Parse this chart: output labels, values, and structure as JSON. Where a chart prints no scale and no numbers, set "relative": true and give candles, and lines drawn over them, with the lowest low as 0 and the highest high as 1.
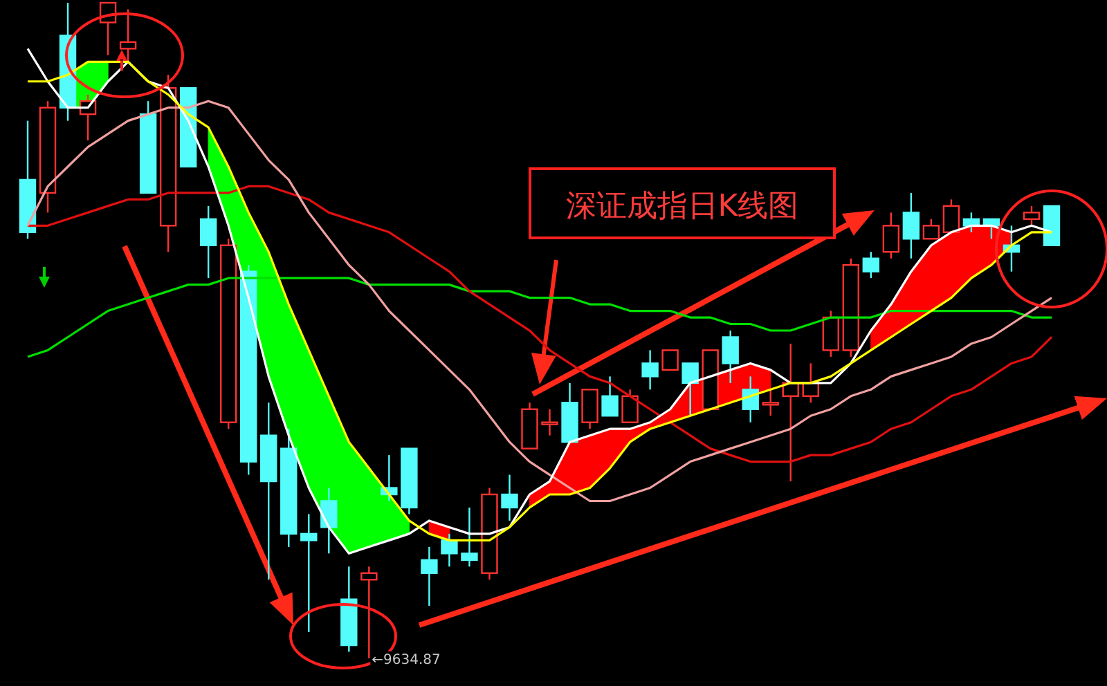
{
  "chart_data": {
    "type": "candlestick",
    "relative": true,
    "categories": [
      null,
      null,
      null,
      null,
      null,
      null,
      null,
      null,
      null,
      null,
      null,
      null,
      null,
      null,
      null,
      null,
      null,
      null,
      null,
      null,
      null,
      null,
      null,
      null,
      null,
      null,
      null,
      null,
      null,
      null,
      null,
      null,
      null,
      null,
      null,
      null,
      null,
      null,
      null,
      null,
      null,
      null,
      null,
      null,
      null,
      null,
      null,
      null,
      null,
      null,
      null,
      null
    ],
    "colors": [
      "#54fcfc",
      "#ff3232",
      "#54fcfc",
      "#ff3232",
      "#ff3232",
      "#ff3232",
      "#54fcfc",
      "#ff3232",
      "#54fcfc",
      "#54fcfc",
      "#ff3232",
      "#54fcfc",
      "#54fcfc",
      "#54fcfc",
      "#54fcfc",
      "#54fcfc",
      "#54fcfc",
      "#ff3232",
      "#54fcfc",
      "#54fcfc",
      "#54fcfc",
      "#54fcfc",
      "#54fcfc",
      "#ff3232",
      "#54fcfc",
      "#ff3232",
      "#ff3232",
      "#54fcfc",
      "#ff3232",
      "#54fcfc",
      "#ff3232",
      "#54fcfc",
      "#ff3232",
      "#54fcfc",
      "#ff3232",
      "#54fcfc",
      "#54fcfc",
      "#ff3232",
      "#ff3232",
      "#ff3232",
      "#ff3232",
      "#ff3232",
      "#54fcfc",
      "#ff3232",
      "#54fcfc",
      "#ff3232",
      "#ff3232",
      "#54fcfc",
      "#54fcfc",
      "#54fcfc",
      "#ff3232",
      "#54fcfc"
    ],
    "ohlc": [
      [
        0.73,
        0.82,
        0.64,
        0.65
      ],
      [
        0.71,
        0.85,
        0.68,
        0.84
      ],
      [
        0.95,
        1.0,
        0.82,
        0.84
      ],
      [
        0.83,
        0.86,
        0.79,
        0.85
      ],
      [
        0.97,
        1.0,
        0.92,
        1.0
      ],
      [
        0.93,
        0.99,
        0.91,
        0.94
      ],
      [
        0.83,
        0.85,
        0.71,
        0.71
      ],
      [
        0.66,
        0.89,
        0.62,
        0.87
      ],
      [
        0.87,
        0.87,
        0.75,
        0.75
      ],
      [
        0.67,
        0.69,
        0.58,
        0.63
      ],
      [
        0.36,
        0.64,
        0.35,
        0.63
      ],
      [
        0.59,
        0.6,
        0.28,
        0.3
      ],
      [
        0.34,
        0.39,
        0.12,
        0.27
      ],
      [
        0.32,
        0.35,
        0.17,
        0.19
      ],
      [
        0.19,
        0.22,
        0.04,
        0.18
      ],
      [
        0.24,
        0.26,
        0.16,
        0.2
      ],
      [
        0.09,
        0.14,
        0.01,
        0.02
      ],
      [
        0.12,
        0.14,
        0.0,
        0.13
      ],
      [
        0.26,
        0.31,
        0.24,
        0.25
      ],
      [
        0.32,
        0.32,
        0.22,
        0.23
      ],
      [
        0.15,
        0.17,
        0.08,
        0.13
      ],
      [
        0.18,
        0.19,
        0.14,
        0.16
      ],
      [
        0.16,
        0.23,
        0.14,
        0.15
      ],
      [
        0.13,
        0.26,
        0.12,
        0.25
      ],
      [
        0.25,
        0.28,
        0.21,
        0.23
      ],
      [
        0.32,
        0.39,
        0.32,
        0.38
      ],
      [
        0.36,
        0.38,
        0.34,
        0.36
      ],
      [
        0.39,
        0.42,
        0.33,
        0.33
      ],
      [
        0.36,
        0.41,
        0.35,
        0.41
      ],
      [
        0.4,
        0.43,
        0.37,
        0.37
      ],
      [
        0.36,
        0.41,
        0.36,
        0.4
      ],
      [
        0.45,
        0.47,
        0.41,
        0.43
      ],
      [
        0.44,
        0.47,
        0.44,
        0.47
      ],
      [
        0.45,
        0.45,
        0.37,
        0.42
      ],
      [
        0.38,
        0.47,
        0.38,
        0.47
      ],
      [
        0.49,
        0.5,
        0.42,
        0.45
      ],
      [
        0.41,
        0.43,
        0.36,
        0.38
      ],
      [
        0.39,
        0.41,
        0.37,
        0.39
      ],
      [
        0.4,
        0.48,
        0.27,
        0.42
      ],
      [
        0.4,
        0.45,
        0.39,
        0.42
      ],
      [
        0.47,
        0.53,
        0.46,
        0.52
      ],
      [
        0.47,
        0.61,
        0.46,
        0.6
      ],
      [
        0.61,
        0.62,
        0.58,
        0.59
      ],
      [
        0.62,
        0.68,
        0.61,
        0.66
      ],
      [
        0.68,
        0.71,
        0.61,
        0.64
      ],
      [
        0.64,
        0.67,
        0.64,
        0.66
      ],
      [
        0.65,
        0.7,
        0.65,
        0.69
      ],
      [
        0.67,
        0.68,
        0.65,
        0.66
      ],
      [
        0.67,
        0.67,
        0.64,
        0.66
      ],
      [
        0.63,
        0.66,
        0.59,
        0.62
      ],
      [
        0.67,
        0.69,
        0.66,
        0.68
      ],
      [
        0.69,
        0.69,
        0.63,
        0.63
      ]
    ],
    "series": [
      {
        "type": "line",
        "color": "#00e000",
        "values": [
          0.46,
          0.47,
          0.49,
          0.51,
          0.53,
          0.54,
          0.55,
          0.56,
          0.57,
          0.57,
          0.58,
          0.58,
          0.58,
          0.58,
          0.58,
          0.58,
          0.58,
          0.57,
          0.57,
          0.57,
          0.57,
          0.57,
          0.56,
          0.56,
          0.56,
          0.55,
          0.55,
          0.55,
          0.54,
          0.54,
          0.53,
          0.53,
          0.53,
          0.52,
          0.52,
          0.51,
          0.51,
          0.5,
          0.5,
          0.51,
          0.52,
          0.52,
          0.52,
          0.53,
          0.53,
          0.53,
          0.53,
          0.53,
          0.53,
          0.53,
          0.52,
          0.52
        ]
      },
      {
        "type": "line",
        "color": "#e01010",
        "values": [
          0.66,
          0.66,
          0.67,
          0.68,
          0.69,
          0.7,
          0.7,
          0.71,
          0.71,
          0.71,
          0.71,
          0.72,
          0.72,
          0.71,
          0.7,
          0.68,
          0.67,
          0.66,
          0.65,
          0.63,
          0.61,
          0.59,
          0.56,
          0.54,
          0.52,
          0.5,
          0.47,
          0.45,
          0.43,
          0.42,
          0.4,
          0.38,
          0.36,
          0.34,
          0.32,
          0.31,
          0.3,
          0.3,
          0.3,
          0.31,
          0.31,
          0.32,
          0.33,
          0.35,
          0.36,
          0.38,
          0.4,
          0.41,
          0.43,
          0.45,
          0.46,
          0.49
        ]
      },
      {
        "type": "line",
        "color": "#f0a0a0",
        "values": [
          0.66,
          0.72,
          0.75,
          0.78,
          0.8,
          0.82,
          0.83,
          0.84,
          0.84,
          0.85,
          0.84,
          0.8,
          0.76,
          0.73,
          0.68,
          0.64,
          0.6,
          0.57,
          0.53,
          0.5,
          0.47,
          0.44,
          0.41,
          0.37,
          0.33,
          0.3,
          0.28,
          0.26,
          0.24,
          0.24,
          0.25,
          0.26,
          0.28,
          0.3,
          0.31,
          0.32,
          0.33,
          0.34,
          0.35,
          0.37,
          0.38,
          0.4,
          0.41,
          0.43,
          0.44,
          0.45,
          0.46,
          0.48,
          0.49,
          0.51,
          0.53,
          0.55
        ]
      },
      {
        "type": "line",
        "color": "#ffffff",
        "colors": [
          null,
          null,
          null,
          null,
          null,
          null,
          null,
          null,
          null,
          null,
          null,
          null,
          null,
          null,
          null,
          null,
          null,
          null,
          null,
          null,
          "#ff0000",
          "#ff0000",
          null,
          null,
          null,
          "#ff0000",
          "#ff0000",
          "#ff0000",
          "#ff0000",
          "#ff0000",
          "#ff0000",
          "#ff0000",
          "#ff0000",
          "#ff0000",
          "#ff0000",
          "#ff0000",
          "#ff0000",
          "#ff0000",
          null,
          null,
          null,
          null,
          "#ff0000",
          "#ff0000",
          "#ff0000",
          "#ff0000",
          "#ff0000",
          "#ff0000",
          "#ff0000",
          "#ff0000",
          null,
          null
        ],
        "values": [
          0.93,
          0.88,
          0.84,
          0.84,
          0.88,
          0.91,
          0.88,
          0.87,
          0.82,
          0.75,
          0.66,
          0.55,
          0.43,
          0.34,
          0.26,
          0.2,
          0.16,
          0.17,
          0.18,
          0.19,
          0.21,
          0.2,
          0.19,
          0.19,
          0.2,
          0.25,
          0.27,
          0.33,
          0.34,
          0.35,
          0.35,
          0.36,
          0.38,
          0.42,
          0.43,
          0.44,
          0.45,
          0.44,
          0.42,
          0.42,
          0.42,
          0.45,
          0.5,
          0.54,
          0.59,
          0.63,
          0.65,
          0.66,
          0.66,
          0.65,
          0.66,
          0.65
        ],
        "upper": [
          null,
          null,
          null,
          null,
          null,
          null,
          null,
          null,
          null,
          null,
          null,
          null,
          null,
          null,
          null,
          null,
          null,
          null,
          null,
          null,
          0.21,
          0.2,
          null,
          null,
          null,
          0.25,
          0.27,
          0.33,
          0.34,
          0.35,
          0.35,
          0.36,
          0.38,
          0.42,
          0.43,
          0.44,
          0.45,
          0.44,
          null,
          null,
          null,
          null,
          0.5,
          0.54,
          0.59,
          0.63,
          0.65,
          0.66,
          0.66,
          0.65,
          null,
          null
        ],
        "lower": [
          null,
          null,
          null,
          null,
          null,
          null,
          null,
          null,
          null,
          null,
          null,
          null,
          null,
          null,
          null,
          null,
          null,
          null,
          null,
          null,
          0.19,
          0.18,
          null,
          null,
          null,
          0.23,
          0.25,
          0.25,
          0.26,
          0.29,
          0.33,
          0.35,
          0.36,
          0.37,
          0.38,
          0.39,
          0.4,
          0.41,
          null,
          null,
          null,
          null,
          0.47,
          0.49,
          0.51,
          0.53,
          0.55,
          0.58,
          0.6,
          0.63,
          null,
          null
        ]
      },
      {
        "type": "line",
        "color": "#ffff00",
        "colors": [
          null,
          null,
          "#00ff00",
          "#00ff00",
          "#00ff00",
          null,
          null,
          null,
          null,
          "#00ff00",
          "#00ff00",
          "#00ff00",
          "#00ff00",
          "#00ff00",
          "#00ff00",
          "#00ff00",
          "#00ff00",
          "#00ff00",
          "#00ff00",
          "#00ff00",
          null,
          null,
          null,
          null,
          null,
          null,
          null,
          null,
          null,
          null,
          null,
          null,
          null,
          null,
          null,
          null,
          null,
          null,
          null,
          null,
          null,
          null,
          null,
          null,
          null,
          null,
          null,
          null,
          null,
          null,
          null,
          null
        ],
        "values": [
          0.88,
          0.88,
          0.89,
          0.91,
          0.91,
          0.91,
          0.88,
          0.86,
          0.83,
          0.81,
          0.75,
          0.68,
          0.62,
          0.54,
          0.47,
          0.4,
          0.33,
          0.29,
          0.25,
          0.21,
          0.19,
          0.18,
          0.18,
          0.18,
          0.2,
          0.23,
          0.25,
          0.25,
          0.26,
          0.29,
          0.33,
          0.35,
          0.36,
          0.37,
          0.38,
          0.39,
          0.4,
          0.41,
          0.42,
          0.42,
          0.43,
          0.45,
          0.47,
          0.49,
          0.51,
          0.53,
          0.55,
          0.58,
          0.6,
          0.63,
          0.65,
          0.65
        ],
        "upper": [
          null,
          null,
          0.89,
          0.91,
          0.91,
          null,
          null,
          null,
          null,
          0.81,
          0.75,
          0.68,
          0.62,
          0.54,
          0.47,
          0.4,
          0.33,
          0.29,
          0.25,
          0.21,
          null,
          null,
          null,
          null,
          null,
          null,
          null,
          null,
          null,
          null,
          null,
          null,
          null,
          null,
          null,
          null,
          null,
          null,
          null,
          null,
          null,
          null,
          null,
          null,
          null,
          null,
          null,
          null,
          null,
          null,
          null,
          null
        ],
        "lower": [
          null,
          null,
          0.84,
          0.84,
          0.88,
          null,
          null,
          null,
          null,
          0.75,
          0.66,
          0.55,
          0.43,
          0.34,
          0.26,
          0.2,
          0.16,
          0.17,
          0.18,
          0.19,
          null,
          null,
          null,
          null,
          null,
          null,
          null,
          null,
          null,
          null,
          null,
          null,
          null,
          null,
          null,
          null,
          null,
          null,
          null,
          null,
          null,
          null,
          null,
          null,
          null,
          null,
          null,
          null,
          null,
          null,
          null,
          null
        ]
      }
    ],
    "annotations": [
      "深证成指日K线图",
      "←9634.87"
    ]
  }
}
